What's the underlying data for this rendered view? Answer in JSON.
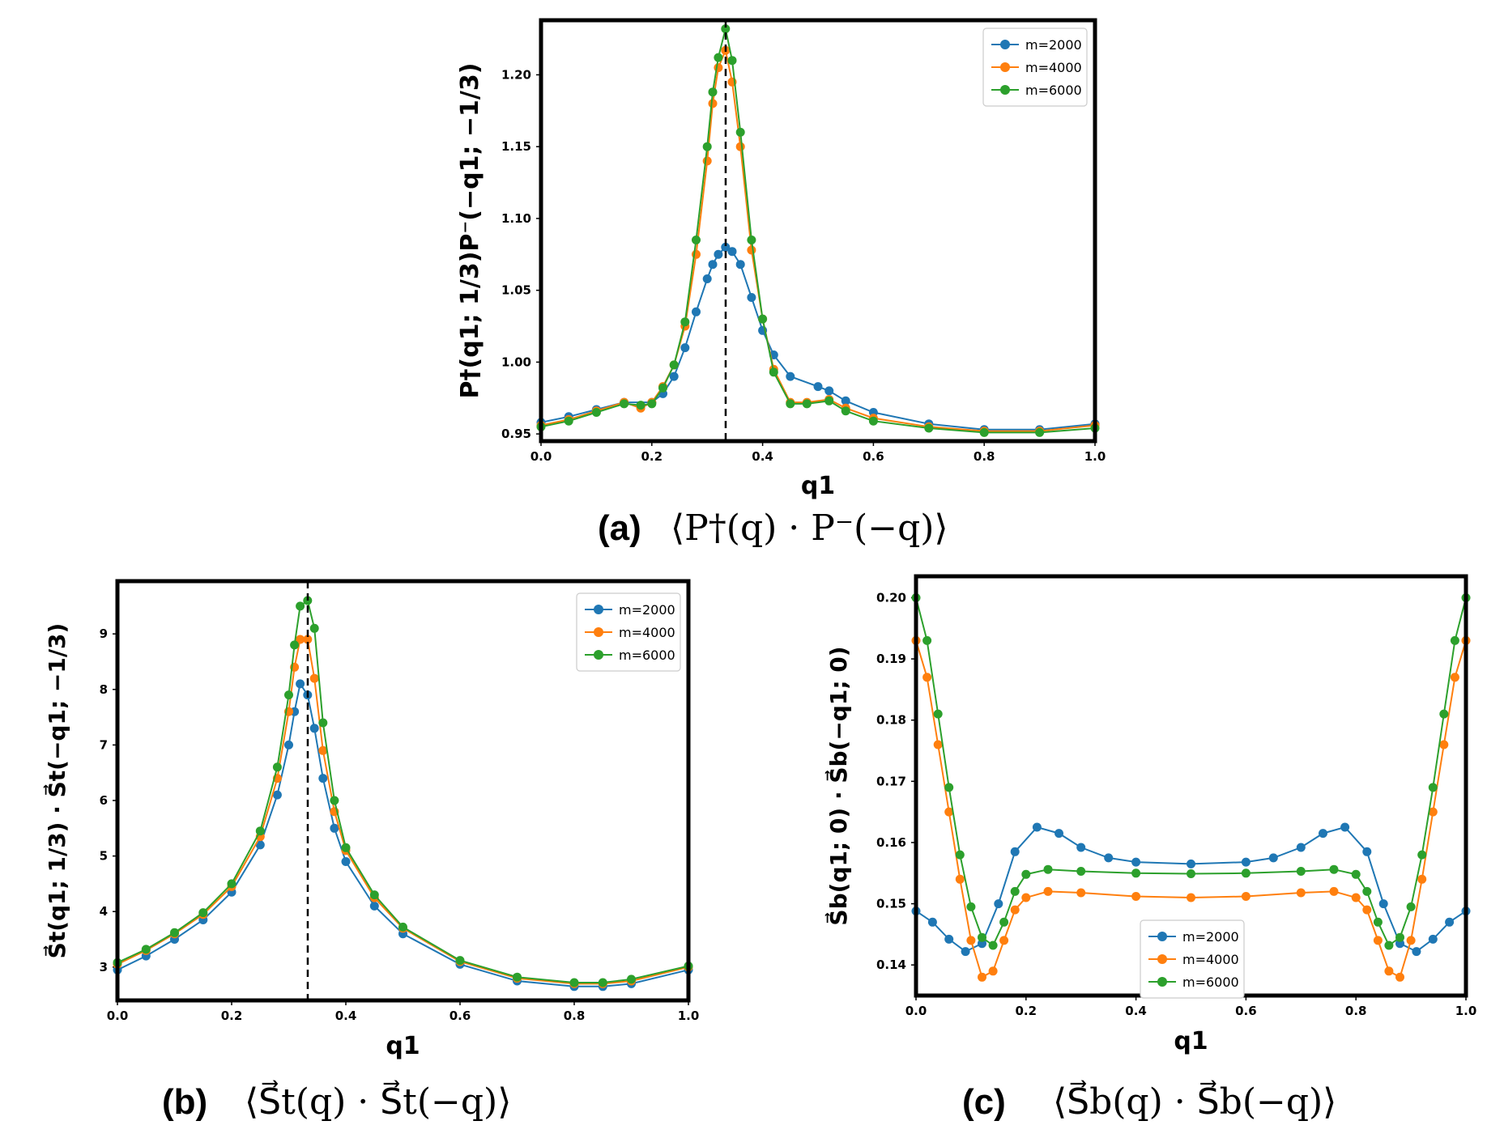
{
  "figure": {
    "series_colors": {
      "m=2000": "#1f77b4",
      "m=4000": "#ff7f0e",
      "m=6000": "#2ca02c"
    }
  },
  "chart_data": [
    {
      "id": "a",
      "type": "line",
      "caption_letter": "(a)",
      "caption_expr": "⟨P†(q) · P⁻(−q)⟩",
      "xlabel": "q1",
      "ylabel": "P†(q1; 1/3)P⁻(−q1; −1/3)",
      "xlim": [
        0.0,
        1.0
      ],
      "ylim": [
        0.945,
        1.238
      ],
      "xticks": [
        "0.0",
        "0.2",
        "0.4",
        "0.6",
        "0.8",
        "1.0"
      ],
      "yticks": [
        "0.95",
        "1.00",
        "1.05",
        "1.10",
        "1.15",
        "1.20"
      ],
      "vline_x": 0.3333,
      "legend_position": "top-right",
      "series": [
        {
          "name": "m=2000",
          "color": "#1f77b4",
          "x": [
            0.0,
            0.05,
            0.1,
            0.15,
            0.2,
            0.22,
            0.24,
            0.26,
            0.28,
            0.3,
            0.31,
            0.32,
            0.333,
            0.345,
            0.36,
            0.38,
            0.4,
            0.42,
            0.45,
            0.5,
            0.52,
            0.55,
            0.6,
            0.7,
            0.8,
            0.9,
            1.0
          ],
          "y": [
            0.958,
            0.962,
            0.967,
            0.972,
            0.972,
            0.978,
            0.99,
            1.01,
            1.035,
            1.058,
            1.068,
            1.075,
            1.08,
            1.077,
            1.068,
            1.045,
            1.022,
            1.005,
            0.99,
            0.983,
            0.98,
            0.973,
            0.965,
            0.957,
            0.953,
            0.953,
            0.957
          ]
        },
        {
          "name": "m=4000",
          "color": "#ff7f0e",
          "x": [
            0.0,
            0.05,
            0.1,
            0.15,
            0.18,
            0.2,
            0.22,
            0.24,
            0.26,
            0.28,
            0.3,
            0.31,
            0.32,
            0.333,
            0.345,
            0.36,
            0.38,
            0.4,
            0.42,
            0.45,
            0.48,
            0.52,
            0.55,
            0.6,
            0.7,
            0.8,
            0.9,
            1.0
          ],
          "y": [
            0.956,
            0.96,
            0.966,
            0.972,
            0.968,
            0.972,
            0.983,
            0.998,
            1.025,
            1.075,
            1.14,
            1.18,
            1.205,
            1.217,
            1.195,
            1.15,
            1.078,
            1.03,
            0.995,
            0.972,
            0.972,
            0.974,
            0.968,
            0.961,
            0.955,
            0.952,
            0.952,
            0.956
          ]
        },
        {
          "name": "m=6000",
          "color": "#2ca02c",
          "x": [
            0.0,
            0.05,
            0.1,
            0.15,
            0.18,
            0.2,
            0.22,
            0.24,
            0.26,
            0.28,
            0.3,
            0.31,
            0.32,
            0.333,
            0.345,
            0.36,
            0.38,
            0.4,
            0.42,
            0.45,
            0.48,
            0.52,
            0.55,
            0.6,
            0.7,
            0.8,
            0.9,
            1.0
          ],
          "y": [
            0.955,
            0.959,
            0.965,
            0.971,
            0.97,
            0.971,
            0.982,
            0.998,
            1.028,
            1.085,
            1.15,
            1.188,
            1.212,
            1.232,
            1.21,
            1.16,
            1.085,
            1.03,
            0.993,
            0.971,
            0.971,
            0.973,
            0.966,
            0.959,
            0.954,
            0.951,
            0.951,
            0.954
          ]
        }
      ]
    },
    {
      "id": "b",
      "type": "line",
      "caption_letter": "(b)",
      "caption_expr": "⟨S⃗t(q) · S⃗t(−q)⟩",
      "xlabel": "q1",
      "ylabel": "S⃗t(q1; 1/3) · S⃗t(−q1; −1/3)",
      "xlim": [
        0.0,
        1.0
      ],
      "ylim": [
        2.4,
        9.95
      ],
      "xticks": [
        "0.0",
        "0.2",
        "0.4",
        "0.6",
        "0.8",
        "1.0"
      ],
      "yticks": [
        "3",
        "4",
        "5",
        "6",
        "7",
        "8",
        "9"
      ],
      "vline_x": 0.3333,
      "legend_position": "top-right",
      "series": [
        {
          "name": "m=2000",
          "color": "#1f77b4",
          "x": [
            0.0,
            0.05,
            0.1,
            0.15,
            0.2,
            0.25,
            0.28,
            0.3,
            0.31,
            0.32,
            0.333,
            0.345,
            0.36,
            0.38,
            0.4,
            0.45,
            0.5,
            0.6,
            0.7,
            0.8,
            0.85,
            0.9,
            1.0
          ],
          "y": [
            2.95,
            3.2,
            3.5,
            3.85,
            4.35,
            5.2,
            6.1,
            7.0,
            7.6,
            8.1,
            7.9,
            7.3,
            6.4,
            5.5,
            4.9,
            4.1,
            3.6,
            3.05,
            2.75,
            2.65,
            2.65,
            2.7,
            2.95
          ]
        },
        {
          "name": "m=4000",
          "color": "#ff7f0e",
          "x": [
            0.0,
            0.05,
            0.1,
            0.15,
            0.2,
            0.25,
            0.28,
            0.3,
            0.31,
            0.32,
            0.333,
            0.345,
            0.36,
            0.38,
            0.4,
            0.45,
            0.5,
            0.6,
            0.7,
            0.8,
            0.85,
            0.9,
            1.0
          ],
          "y": [
            3.05,
            3.3,
            3.6,
            3.95,
            4.45,
            5.35,
            6.4,
            7.6,
            8.4,
            8.9,
            8.9,
            8.2,
            6.9,
            5.8,
            5.1,
            4.25,
            3.7,
            3.1,
            2.8,
            2.7,
            2.7,
            2.75,
            3.0
          ]
        },
        {
          "name": "m=6000",
          "color": "#2ca02c",
          "x": [
            0.0,
            0.05,
            0.1,
            0.15,
            0.2,
            0.25,
            0.28,
            0.3,
            0.31,
            0.32,
            0.333,
            0.345,
            0.36,
            0.38,
            0.4,
            0.45,
            0.5,
            0.6,
            0.7,
            0.8,
            0.85,
            0.9,
            1.0
          ],
          "y": [
            3.08,
            3.32,
            3.62,
            3.98,
            4.5,
            5.45,
            6.6,
            7.9,
            8.8,
            9.5,
            9.6,
            9.1,
            7.4,
            6.0,
            5.15,
            4.3,
            3.72,
            3.12,
            2.82,
            2.72,
            2.72,
            2.78,
            3.02
          ]
        }
      ]
    },
    {
      "id": "c",
      "type": "line",
      "caption_letter": "(c)",
      "caption_expr": "⟨S⃗b(q) · S⃗b(−q)⟩",
      "xlabel": "q1",
      "ylabel": "S⃗b(q1; 0) · S⃗b(−q1; 0)",
      "xlim": [
        0.0,
        1.0
      ],
      "ylim": [
        0.135,
        0.2035
      ],
      "xticks": [
        "0.0",
        "0.2",
        "0.4",
        "0.6",
        "0.8",
        "1.0"
      ],
      "yticks": [
        "0.14",
        "0.15",
        "0.16",
        "0.17",
        "0.18",
        "0.19",
        "0.20"
      ],
      "vline_x": null,
      "legend_position": "bottom-center",
      "series": [
        {
          "name": "m=2000",
          "color": "#1f77b4",
          "x": [
            0.0,
            0.03,
            0.06,
            0.09,
            0.12,
            0.15,
            0.18,
            0.22,
            0.26,
            0.3,
            0.35,
            0.4,
            0.5,
            0.6,
            0.65,
            0.7,
            0.74,
            0.78,
            0.82,
            0.85,
            0.88,
            0.91,
            0.94,
            0.97,
            1.0
          ],
          "y": [
            0.1488,
            0.147,
            0.1442,
            0.1422,
            0.1435,
            0.15,
            0.1585,
            0.1625,
            0.1615,
            0.1592,
            0.1575,
            0.1568,
            0.1565,
            0.1568,
            0.1575,
            0.1592,
            0.1615,
            0.1625,
            0.1585,
            0.15,
            0.1435,
            0.1422,
            0.1442,
            0.147,
            0.1488
          ]
        },
        {
          "name": "m=4000",
          "color": "#ff7f0e",
          "x": [
            0.0,
            0.02,
            0.04,
            0.06,
            0.08,
            0.1,
            0.12,
            0.14,
            0.16,
            0.18,
            0.2,
            0.24,
            0.3,
            0.4,
            0.5,
            0.6,
            0.7,
            0.76,
            0.8,
            0.82,
            0.84,
            0.86,
            0.88,
            0.9,
            0.92,
            0.94,
            0.96,
            0.98,
            1.0
          ],
          "y": [
            0.193,
            0.187,
            0.176,
            0.165,
            0.154,
            0.144,
            0.138,
            0.139,
            0.144,
            0.149,
            0.151,
            0.152,
            0.1518,
            0.1512,
            0.151,
            0.1512,
            0.1518,
            0.152,
            0.151,
            0.149,
            0.144,
            0.139,
            0.138,
            0.144,
            0.154,
            0.165,
            0.176,
            0.187,
            0.193
          ]
        },
        {
          "name": "m=6000",
          "color": "#2ca02c",
          "x": [
            0.0,
            0.02,
            0.04,
            0.06,
            0.08,
            0.1,
            0.12,
            0.14,
            0.16,
            0.18,
            0.2,
            0.24,
            0.3,
            0.4,
            0.5,
            0.6,
            0.7,
            0.76,
            0.8,
            0.82,
            0.84,
            0.86,
            0.88,
            0.9,
            0.92,
            0.94,
            0.96,
            0.98,
            1.0
          ],
          "y": [
            0.2,
            0.193,
            0.181,
            0.169,
            0.158,
            0.1495,
            0.1445,
            0.1432,
            0.147,
            0.152,
            0.1548,
            0.1556,
            0.1553,
            0.155,
            0.1549,
            0.155,
            0.1553,
            0.1556,
            0.1548,
            0.152,
            0.147,
            0.1432,
            0.1445,
            0.1495,
            0.158,
            0.169,
            0.181,
            0.193,
            0.2
          ]
        }
      ]
    }
  ]
}
